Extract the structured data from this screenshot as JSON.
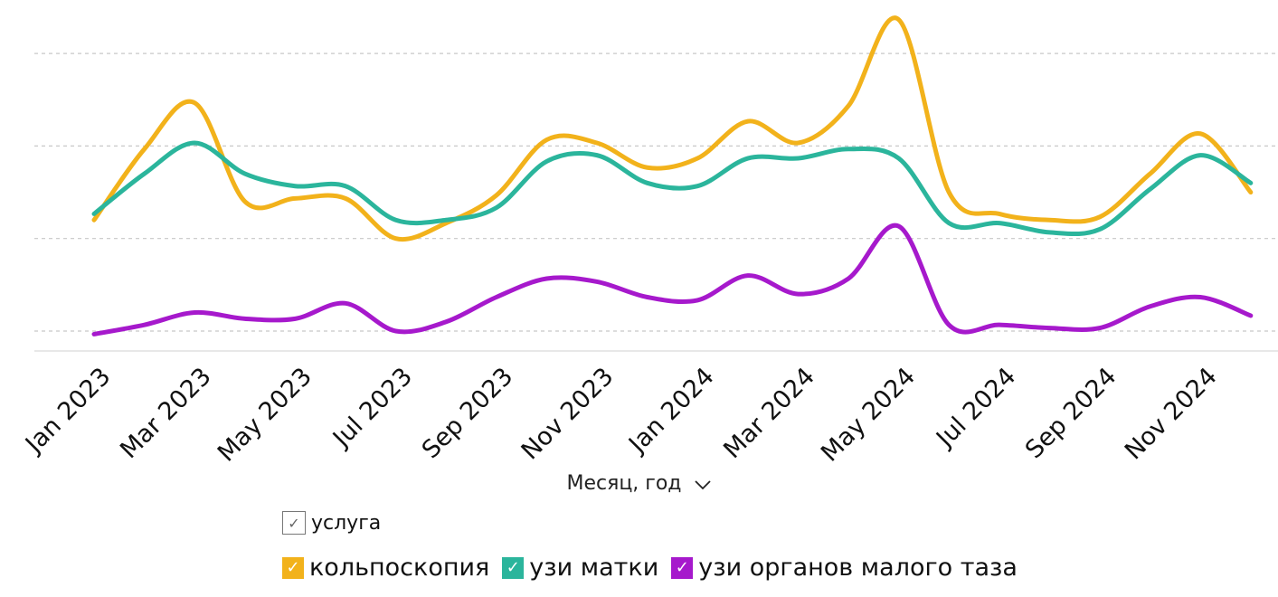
{
  "chart_data": {
    "type": "line",
    "title": "",
    "xlabel": "Месяц, год",
    "ylabel": "",
    "grid": true,
    "smooth": true,
    "tick_labels": [
      "Jan 2023",
      "Mar 2023",
      "May 2023",
      "Jul 2023",
      "Sep 2023",
      "Nov 2023",
      "Jan 2024",
      "Mar 2024",
      "May 2024",
      "Jul 2024",
      "Sep 2024",
      "Nov 2024"
    ],
    "x": [
      "Jan 2023",
      "Feb 2023",
      "Mar 2023",
      "Apr 2023",
      "May 2023",
      "Jun 2023",
      "Jul 2023",
      "Aug 2023",
      "Sep 2023",
      "Oct 2023",
      "Nov 2023",
      "Dec 2023",
      "Jan 2024",
      "Feb 2024",
      "Mar 2024",
      "Apr 2024",
      "May 2024",
      "Jun 2024",
      "Jul 2024",
      "Aug 2024",
      "Sep 2024",
      "Oct 2024",
      "Nov 2024",
      "Dec 2024"
    ],
    "ylim": [
      0,
      100
    ],
    "gridlines": [
      0,
      30,
      60,
      90
    ],
    "series": [
      {
        "name": "кольпоскопия",
        "color": "#F2B21B",
        "values": [
          36,
          59,
          74,
          42,
          43,
          43,
          30,
          35,
          44,
          62,
          61,
          53,
          56,
          68,
          61,
          73,
          101,
          45,
          38,
          36,
          37,
          51,
          64,
          45
        ]
      },
      {
        "name": "узи матки",
        "color": "#2BB59C",
        "values": [
          38,
          51,
          61,
          51,
          47,
          47,
          36,
          36,
          40,
          55,
          57,
          48,
          47,
          56,
          56,
          59,
          56,
          35,
          35,
          32,
          33,
          46,
          57,
          48
        ]
      },
      {
        "name": "узи органов малого таза",
        "color": "#A619CC",
        "values": [
          -1,
          2,
          6,
          4,
          4,
          9,
          0,
          3,
          11,
          17,
          16,
          11,
          10,
          18,
          12,
          17,
          34,
          2,
          2,
          1,
          1,
          8,
          11,
          5
        ]
      }
    ]
  },
  "legend": {
    "title": "услуга",
    "check": "✓",
    "items": [
      "кольпоскопия",
      "узи матки",
      "узи органов малого таза"
    ]
  },
  "axis_title_chevron_icon": "chevron-down-icon"
}
